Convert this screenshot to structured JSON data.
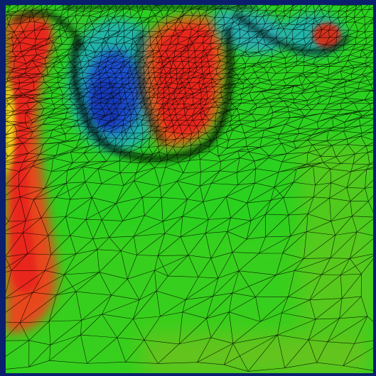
{
  "scene": {
    "subject": "cavity-flow-field-on-triangular-mesh",
    "frame_color": "#0a1f6e",
    "background_field_color": "#2bd11f",
    "mesh_line_color": "#000000",
    "colormap": [
      "#1a4fd0",
      "#18a6d8",
      "#22c77a",
      "#2bd11f",
      "#8fcf1a",
      "#c89a18",
      "#e05a1a",
      "#e8261a",
      "#f3e21a"
    ]
  }
}
